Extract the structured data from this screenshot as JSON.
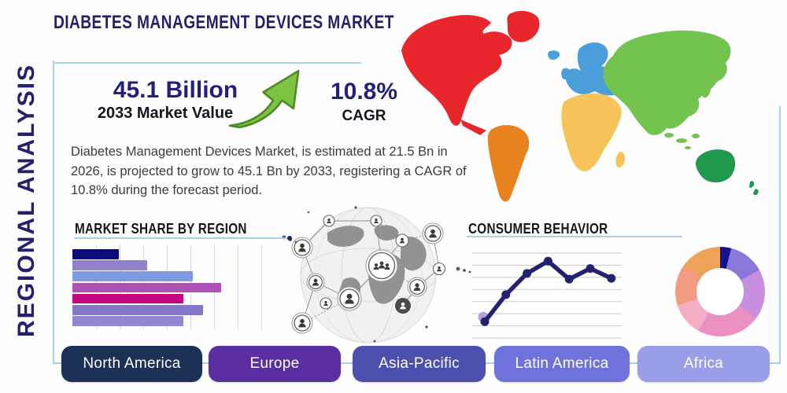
{
  "title": "DIABETES MANAGEMENT DEVICES MARKET",
  "side_label": "REGIONAL ANALYSIS",
  "highlight": {
    "value": "45.1 Billion",
    "value_caption": "2033 Market Value",
    "cagr": "10.8%",
    "cagr_caption": "CAGR",
    "arrow_color": "#7ec242",
    "arrow_outline": "#4e8a28"
  },
  "description": "Diabetes Management Devices Market, is estimated at 21.5 Bn in 2026, is projected to grow to 45.1 Bn by 2033, registering a CAGR of 10.8% during the forecast period.",
  "accent": {
    "frame_line": "#a9d2e4",
    "navy": "#23206f"
  },
  "map_regions": [
    {
      "name": "North America",
      "color": "#e8262c"
    },
    {
      "name": "South America",
      "color": "#e8821d"
    },
    {
      "name": "Europe",
      "color": "#4a9fdb"
    },
    {
      "name": "Africa",
      "color": "#f6c45a"
    },
    {
      "name": "Asia",
      "color": "#72c44f"
    },
    {
      "name": "Oceania",
      "color": "#1f9a4d"
    }
  ],
  "region_buttons": [
    {
      "label": "North America",
      "color": "#1b3156"
    },
    {
      "label": "Europe",
      "color": "#5a2da0"
    },
    {
      "label": "Asia-Pacific",
      "color": "#4d4fae"
    },
    {
      "label": "Latin America",
      "color": "#6f72da"
    },
    {
      "label": "Africa",
      "color": "#9a9de8"
    }
  ],
  "chart_data": [
    {
      "id": "market_share_by_region",
      "type": "bar",
      "title": "MARKET SHARE BY REGION",
      "orientation": "horizontal",
      "values": [
        28,
        45,
        73,
        90,
        67,
        79,
        67
      ],
      "xlim": [
        0,
        100
      ],
      "bar_colors": [
        "#0c0c7c",
        "#9181cd",
        "#7f9ae2",
        "#ad52b4",
        "#c40682",
        "#8677c8",
        "#9186d0"
      ],
      "grid": true,
      "tick_labels": "none"
    },
    {
      "id": "consumer_behavior",
      "type": "line",
      "title": "CONSUMER BEHAVIOR",
      "x": [
        1,
        2,
        3,
        4,
        5,
        6,
        7
      ],
      "values": [
        2.0,
        5.3,
        7.9,
        9.4,
        7.2,
        8.5,
        7.3
      ],
      "ylim": [
        0,
        10
      ],
      "line_color": "#23226e",
      "marker": "circle",
      "first_point_halo_color": "#b7a3dc",
      "grid": "horizontal",
      "tick_labels": "none"
    },
    {
      "id": "regional_mix_donut",
      "type": "pie",
      "donut": true,
      "values": [
        4,
        13,
        18,
        23,
        12,
        15,
        15
      ],
      "colors": [
        "#15128f",
        "#8a77d9",
        "#c88fe0",
        "#ea8fc2",
        "#f5aec4",
        "#f29b80",
        "#eda25a"
      ],
      "start_angle_deg": 0,
      "legend": "none"
    }
  ]
}
